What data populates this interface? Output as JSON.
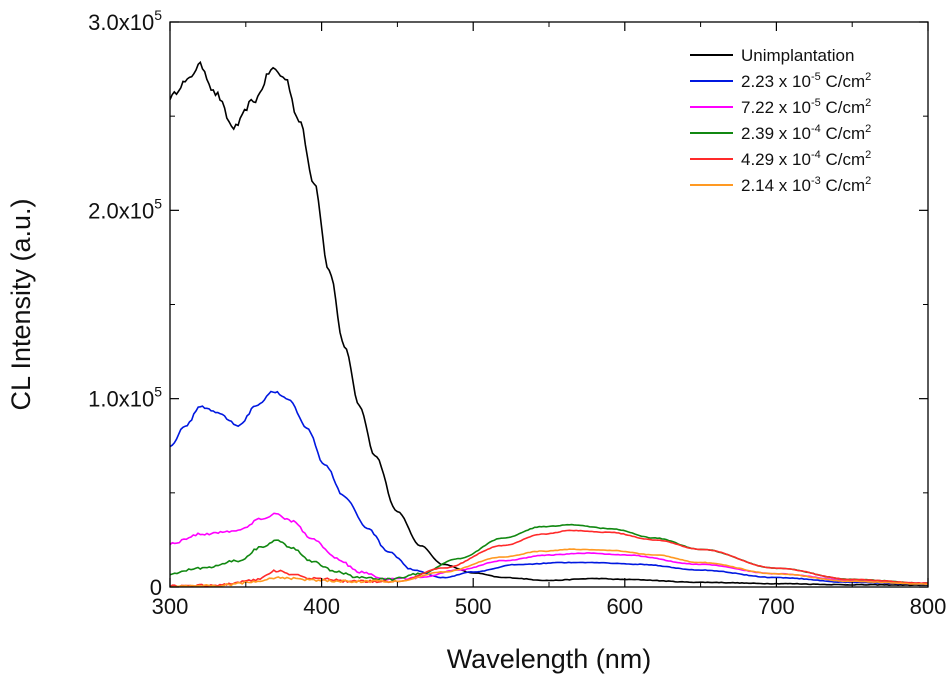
{
  "chart_data": {
    "type": "line",
    "title": "",
    "xlabel": "Wavelength (nm)",
    "ylabel": "CL Intensity (a.u.)",
    "xlim": [
      300,
      800
    ],
    "ylim": [
      0,
      300000
    ],
    "x_ticks": [
      300,
      400,
      500,
      600,
      700,
      800
    ],
    "x_tick_labels": [
      "300",
      "400",
      "500",
      "600",
      "700",
      "800"
    ],
    "y_ticks": [
      0,
      100000,
      200000,
      300000
    ],
    "y_tick_labels": [
      {
        "mantissa": "0",
        "exp": ""
      },
      {
        "mantissa": "1.0x10",
        "exp": "5"
      },
      {
        "mantissa": "2.0x10",
        "exp": "5"
      },
      {
        "mantissa": "3.0x10",
        "exp": "5"
      }
    ],
    "grid": false,
    "legend_position": "top-right",
    "series": [
      {
        "name": "Unimplantation",
        "legend": {
          "pre": "Unimplantation",
          "exp": "",
          "post": "",
          "post_exp": ""
        },
        "color": "#000000",
        "x": [
          300,
          310,
          320,
          330,
          342,
          355,
          368,
          376,
          385,
          395,
          405,
          415,
          425,
          435,
          450,
          465,
          480,
          500,
          520,
          550,
          580,
          600,
          650,
          700,
          750,
          800
        ],
        "y": [
          260000,
          268000,
          277000,
          262000,
          244000,
          258000,
          275000,
          270000,
          248000,
          215000,
          168000,
          128000,
          96000,
          70000,
          40000,
          22000,
          12000,
          7500,
          5000,
          3500,
          4500,
          4000,
          2500,
          1800,
          1200,
          1000
        ]
      },
      {
        "name": "2.23 x 10-5 C/cm2",
        "legend": {
          "pre": "2.23 x 10",
          "exp": "-5",
          "post": " C/cm",
          "post_exp": "2"
        },
        "color": "#0018e0",
        "x": [
          300,
          310,
          320,
          330,
          345,
          358,
          368,
          378,
          390,
          402,
          415,
          430,
          445,
          460,
          480,
          500,
          530,
          560,
          580,
          610,
          650,
          700,
          750,
          800
        ],
        "y": [
          75000,
          85000,
          96000,
          93000,
          86000,
          97000,
          104000,
          100000,
          85000,
          65000,
          48000,
          31000,
          18000,
          9000,
          5000,
          8000,
          12000,
          13000,
          13000,
          12000,
          9000,
          5000,
          2500,
          1500
        ]
      },
      {
        "name": "7.22 x 10-5 C/cm2",
        "legend": {
          "pre": "7.22 x 10",
          "exp": "-5",
          "post": " C/cm",
          "post_exp": "2"
        },
        "color": "#ff00ff",
        "x": [
          300,
          320,
          345,
          360,
          370,
          380,
          395,
          410,
          425,
          445,
          465,
          490,
          520,
          550,
          575,
          600,
          650,
          700,
          750,
          800
        ],
        "y": [
          23000,
          28000,
          30000,
          36000,
          39000,
          35000,
          25000,
          15000,
          8000,
          4000,
          5000,
          9000,
          14000,
          17000,
          18000,
          17000,
          12000,
          7000,
          3500,
          2000
        ]
      },
      {
        "name": "2.39 x 10-4 C/cm2",
        "legend": {
          "pre": "2.39 x 10",
          "exp": "-4",
          "post": " C/cm",
          "post_exp": "2"
        },
        "color": "#118811",
        "x": [
          300,
          320,
          345,
          360,
          370,
          380,
          395,
          410,
          425,
          445,
          465,
          490,
          520,
          545,
          565,
          590,
          620,
          650,
          700,
          750,
          800
        ],
        "y": [
          7000,
          10000,
          14000,
          21000,
          24500,
          21000,
          13000,
          8000,
          5000,
          4000,
          7000,
          15000,
          26000,
          32000,
          33000,
          31000,
          26000,
          20000,
          10000,
          4000,
          2000
        ]
      },
      {
        "name": "4.29 x 10-4 C/cm2",
        "legend": {
          "pre": "4.29 x 10",
          "exp": "-4",
          "post": " C/cm",
          "post_exp": "2"
        },
        "color": "#ff2a2a",
        "x": [
          300,
          330,
          355,
          370,
          380,
          395,
          420,
          450,
          480,
          520,
          545,
          565,
          590,
          620,
          650,
          700,
          750,
          800
        ],
        "y": [
          500,
          1000,
          3500,
          8500,
          7000,
          4500,
          3000,
          3000,
          10000,
          22000,
          28000,
          30000,
          29000,
          25000,
          20000,
          10000,
          4000,
          2000
        ]
      },
      {
        "name": "2.14 x 10-3 C/cm2",
        "legend": {
          "pre": "2.14 x 10",
          "exp": "-3",
          "post": " C/cm",
          "post_exp": "2"
        },
        "color": "#ff9922",
        "x": [
          300,
          330,
          355,
          370,
          380,
          395,
          420,
          450,
          480,
          520,
          545,
          565,
          590,
          620,
          650,
          700,
          750,
          800
        ],
        "y": [
          300,
          700,
          2500,
          5000,
          4500,
          3500,
          3000,
          3000,
          8000,
          16000,
          19000,
          20000,
          19500,
          17000,
          13000,
          7000,
          3000,
          1500
        ]
      }
    ]
  }
}
